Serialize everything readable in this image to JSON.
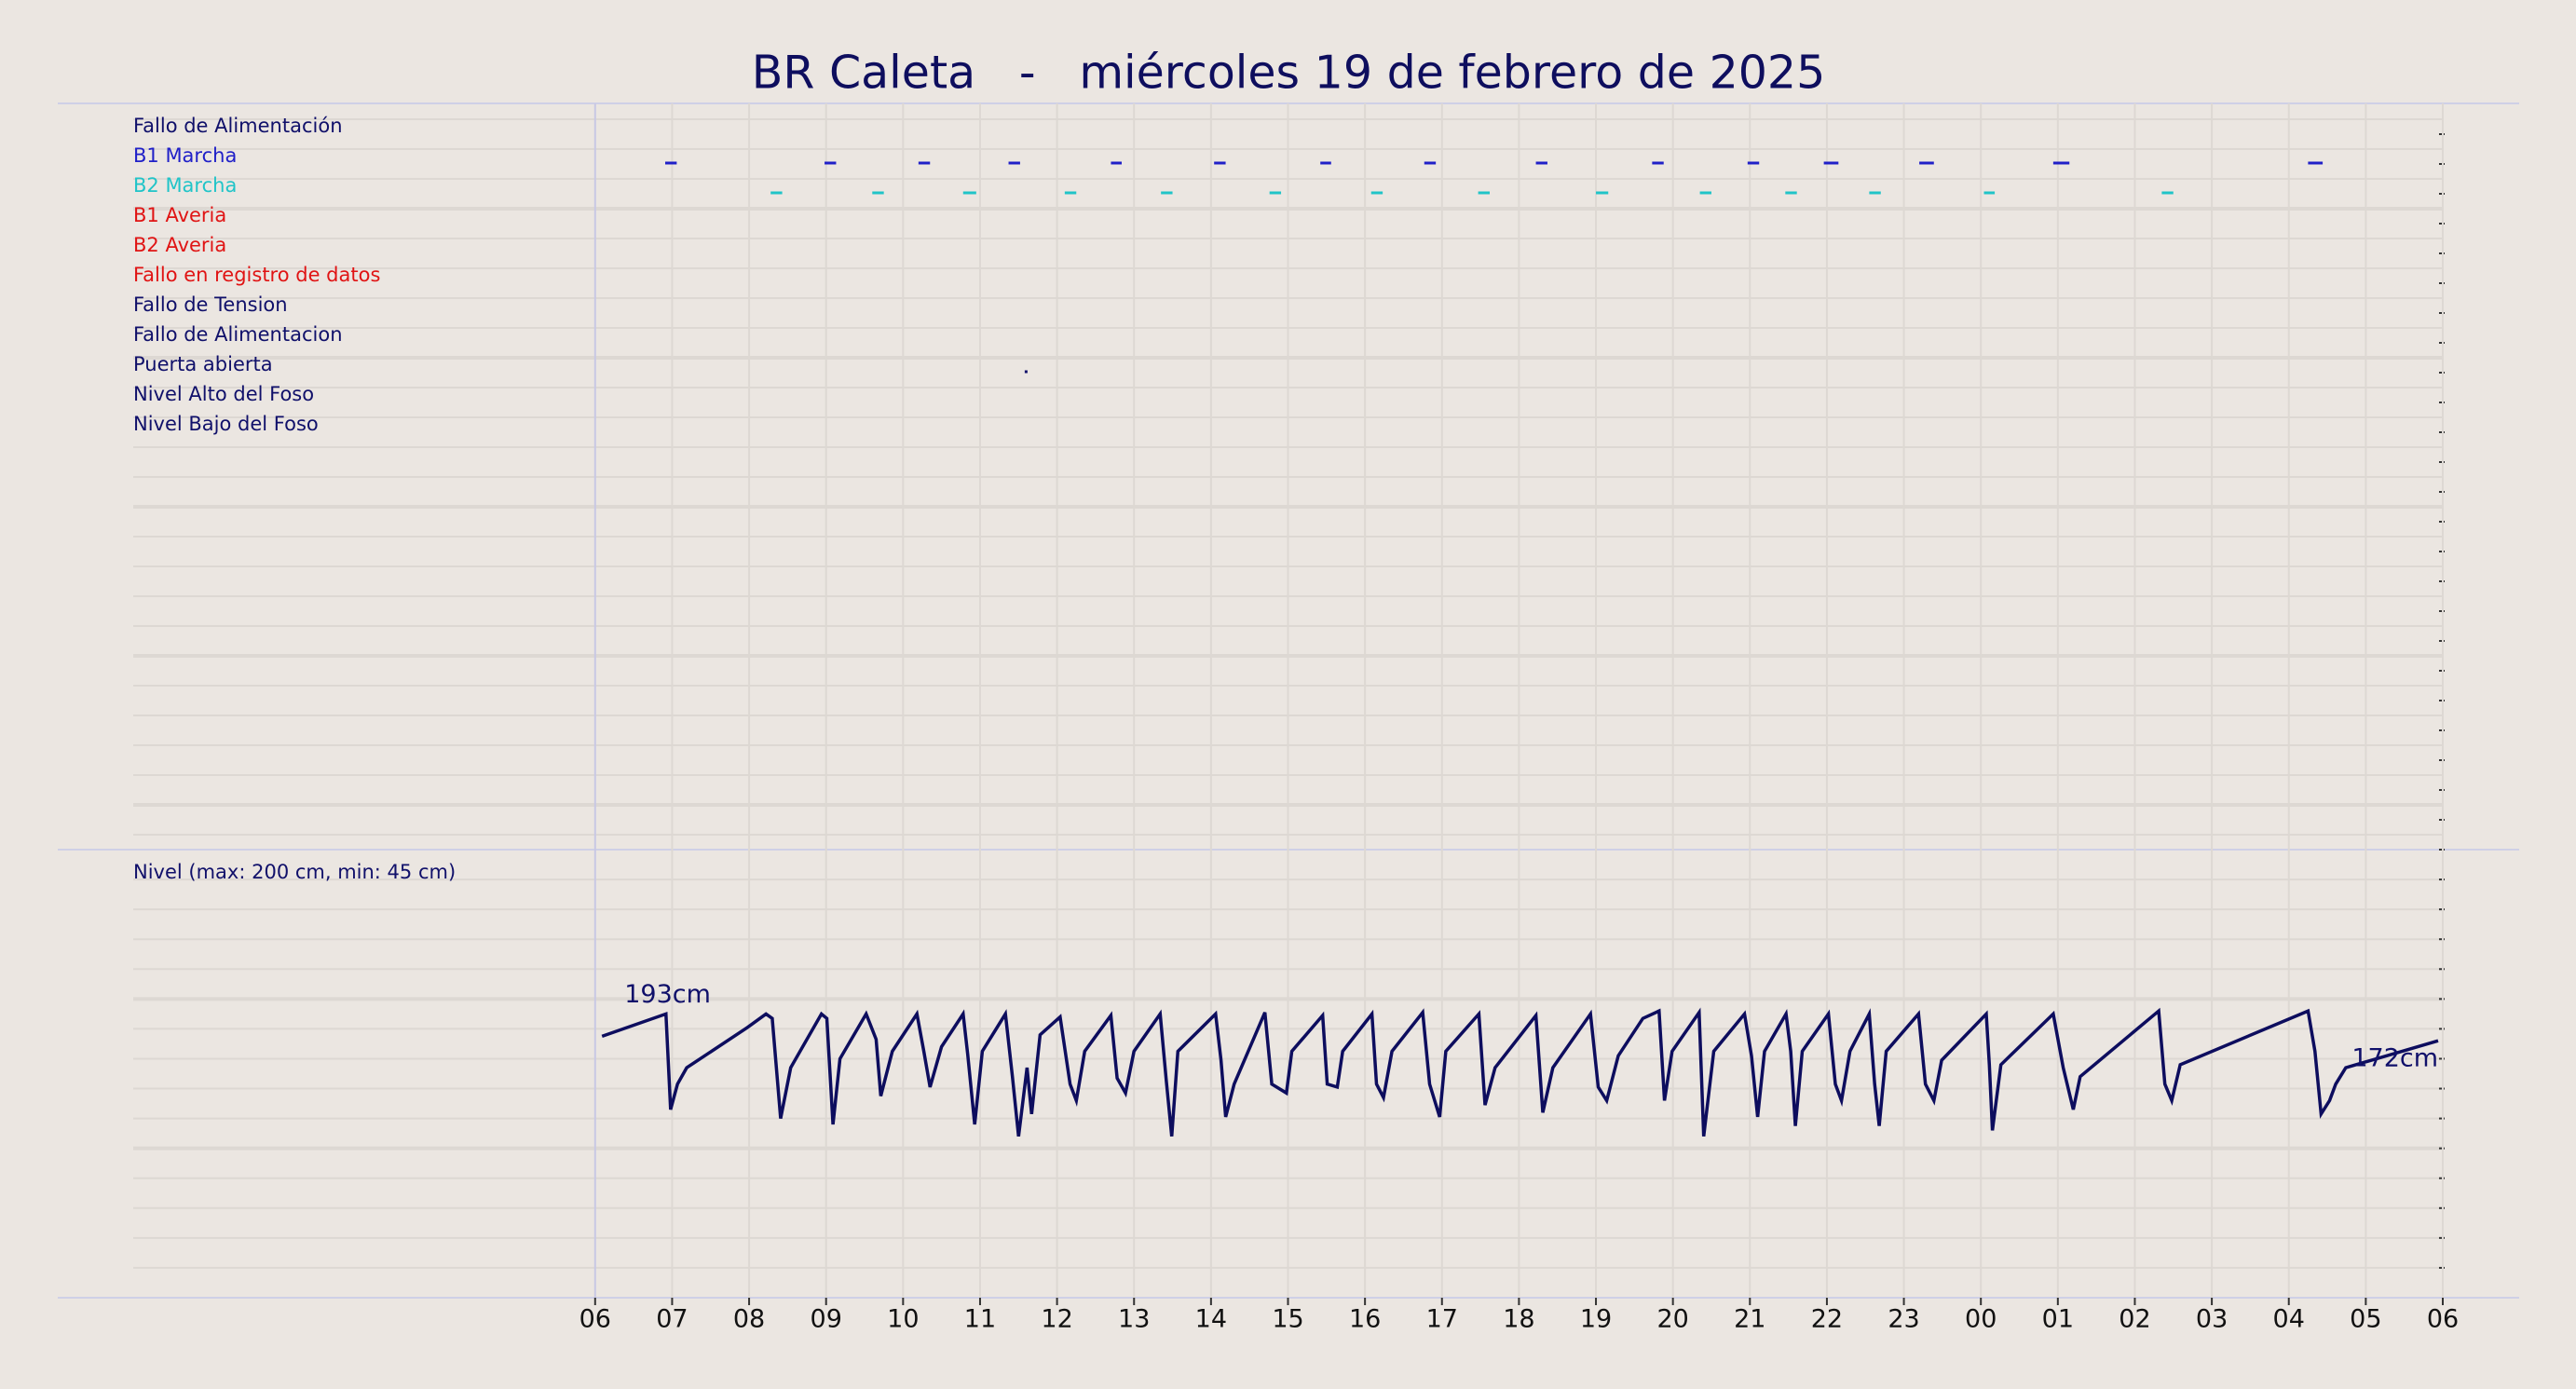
{
  "chart_data": [
    {
      "type": "timeline",
      "title": "BR Caleta   -   miércoles 19 de febrero de 2025",
      "xlim": [
        -6,
        24
      ],
      "grid": true,
      "rows": [
        {
          "name": "Fallo de Alimentación",
          "color": "#10106a",
          "events": []
        },
        {
          "name": "B1 Marcha",
          "color": "#2020c8",
          "events": [
            [
              0.91,
              1.06
            ],
            [
              2.98,
              3.13
            ],
            [
              4.2,
              4.35
            ],
            [
              5.37,
              5.52
            ],
            [
              6.7,
              6.84
            ],
            [
              8.04,
              8.19
            ],
            [
              9.42,
              9.56
            ],
            [
              10.77,
              10.92
            ],
            [
              12.22,
              12.37
            ],
            [
              13.73,
              13.88
            ],
            [
              14.97,
              15.12
            ],
            [
              15.96,
              16.15
            ],
            [
              17.2,
              17.39
            ],
            [
              18.94,
              19.15
            ],
            [
              22.25,
              22.44
            ]
          ]
        },
        {
          "name": "B2 Marcha",
          "color": "#20c4c8",
          "events": [
            [
              2.28,
              2.43
            ],
            [
              3.6,
              3.75
            ],
            [
              4.78,
              4.95
            ],
            [
              6.1,
              6.25
            ],
            [
              7.35,
              7.5
            ],
            [
              8.76,
              8.91
            ],
            [
              10.08,
              10.23
            ],
            [
              11.47,
              11.62
            ],
            [
              13.0,
              13.16
            ],
            [
              14.35,
              14.5
            ],
            [
              15.46,
              15.61
            ],
            [
              16.55,
              16.7
            ],
            [
              18.04,
              18.18
            ],
            [
              20.35,
              20.5
            ]
          ]
        },
        {
          "name": "B1 Averia",
          "color": "#e01414",
          "events": []
        },
        {
          "name": "B2 Averia",
          "color": "#e01414",
          "events": []
        },
        {
          "name": "Fallo en registro de datos",
          "color": "#e01414",
          "events": []
        },
        {
          "name": "Fallo de Tension",
          "color": "#10106a",
          "events": []
        },
        {
          "name": "Fallo de Alimentacion",
          "color": "#10106a",
          "events": []
        },
        {
          "name": "Puerta abierta",
          "color": "#10106a",
          "events": [
            [
              5.58,
              5.61
            ]
          ]
        },
        {
          "name": "Nivel Alto del Foso",
          "color": "#10106a",
          "events": []
        },
        {
          "name": "Nivel Bajo del Foso",
          "color": "#10106a",
          "events": []
        }
      ]
    },
    {
      "type": "line",
      "label": "Nivel (max: 200 cm, min: 45 cm)",
      "color": "#0d0d5e",
      "xlim": [
        -6,
        24
      ],
      "xticks": [
        {
          "value": 0,
          "label": "06"
        },
        {
          "value": 1,
          "label": "07"
        },
        {
          "value": 2,
          "label": "08"
        },
        {
          "value": 3,
          "label": "09"
        },
        {
          "value": 4,
          "label": "10"
        },
        {
          "value": 5,
          "label": "11"
        },
        {
          "value": 6,
          "label": "12"
        },
        {
          "value": 7,
          "label": "13"
        },
        {
          "value": 8,
          "label": "14"
        },
        {
          "value": 9,
          "label": "15"
        },
        {
          "value": 10,
          "label": "16"
        },
        {
          "value": 11,
          "label": "17"
        },
        {
          "value": 12,
          "label": "18"
        },
        {
          "value": 13,
          "label": "19"
        },
        {
          "value": 14,
          "label": "20"
        },
        {
          "value": 15,
          "label": "21"
        },
        {
          "value": 16,
          "label": "22"
        },
        {
          "value": 17,
          "label": "23"
        },
        {
          "value": 18,
          "label": "00"
        },
        {
          "value": 19,
          "label": "01"
        },
        {
          "value": 20,
          "label": "02"
        },
        {
          "value": 21,
          "label": "03"
        },
        {
          "value": 22,
          "label": "04"
        },
        {
          "value": 23,
          "label": "05"
        },
        {
          "value": 24,
          "label": "06"
        }
      ],
      "ylim": [
        0,
        300
      ],
      "yticks": [
        20,
        40,
        60,
        80,
        100,
        120,
        140,
        160,
        180,
        200,
        220,
        240,
        260,
        280
      ],
      "grid": true,
      "annotations": [
        "193cm",
        "172cm"
      ],
      "x": [
        0.09,
        0.92,
        0.98,
        1.07,
        1.19,
        1.98,
        2.22,
        2.3,
        2.41,
        2.54,
        2.94,
        3.01,
        3.09,
        3.18,
        3.52,
        3.65,
        3.71,
        3.86,
        4.18,
        4.27,
        4.35,
        4.5,
        4.78,
        4.84,
        4.93,
        5.03,
        5.33,
        5.42,
        5.5,
        5.61,
        5.67,
        5.78,
        6.04,
        6.17,
        6.25,
        6.36,
        6.7,
        6.78,
        6.89,
        7.0,
        7.34,
        7.42,
        7.49,
        7.57,
        8.06,
        8.13,
        8.19,
        8.3,
        8.7,
        8.79,
        8.98,
        9.05,
        9.45,
        9.51,
        9.64,
        9.71,
        10.09,
        10.15,
        10.24,
        10.35,
        10.75,
        10.84,
        10.97,
        11.05,
        11.48,
        11.56,
        11.69,
        12.22,
        12.31,
        12.44,
        12.93,
        13.03,
        13.14,
        13.29,
        13.61,
        13.82,
        13.89,
        13.99,
        14.34,
        14.4,
        14.53,
        14.93,
        15.02,
        15.1,
        15.19,
        15.47,
        15.53,
        15.59,
        15.68,
        16.02,
        16.11,
        16.19,
        16.3,
        16.55,
        16.62,
        16.68,
        16.77,
        17.19,
        17.28,
        17.39,
        17.49,
        18.07,
        18.11,
        18.15,
        18.26,
        18.94,
        19.07,
        19.2,
        19.29,
        20.31,
        20.39,
        20.48,
        20.59,
        22.25,
        22.34,
        22.42,
        22.53,
        22.61,
        22.74,
        23.94
      ],
      "values": [
        175,
        190,
        126,
        143,
        154,
        181,
        190,
        187,
        120,
        154,
        190,
        187,
        116,
        160,
        190,
        173,
        135,
        165,
        190,
        165,
        141,
        168,
        190,
        163,
        116,
        165,
        190,
        148,
        108,
        154,
        123,
        176,
        188,
        143,
        132,
        165,
        189,
        147,
        137,
        165,
        190,
        145,
        108,
        165,
        190,
        159,
        121,
        143,
        191,
        143,
        137,
        165,
        189,
        143,
        141,
        165,
        190,
        143,
        134,
        165,
        191,
        143,
        121,
        165,
        190,
        129,
        154,
        189,
        124,
        154,
        190,
        141,
        132,
        162,
        187,
        192,
        132,
        165,
        191,
        108,
        165,
        190,
        162,
        121,
        165,
        190,
        165,
        115,
        165,
        190,
        143,
        132,
        165,
        190,
        143,
        115,
        165,
        190,
        143,
        132,
        159,
        190,
        156,
        112,
        156,
        190,
        154,
        126,
        148,
        192,
        143,
        132,
        156,
        192,
        165,
        123,
        132,
        143,
        154,
        172
      ]
    }
  ]
}
